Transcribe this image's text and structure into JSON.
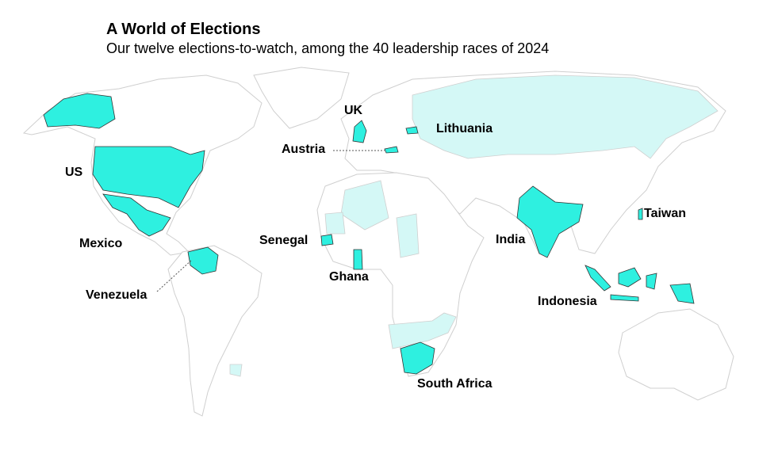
{
  "header": {
    "title": "A World of Elections",
    "subtitle": "Our twelve elections-to-watch, among the 40 leadership races of 2024"
  },
  "countries": [
    "UK",
    "Lithuania",
    "Austria",
    "US",
    "Mexico",
    "Senegal",
    "Ghana",
    "Venezuela",
    "India",
    "Taiwan",
    "Indonesia",
    "South Africa"
  ]
}
